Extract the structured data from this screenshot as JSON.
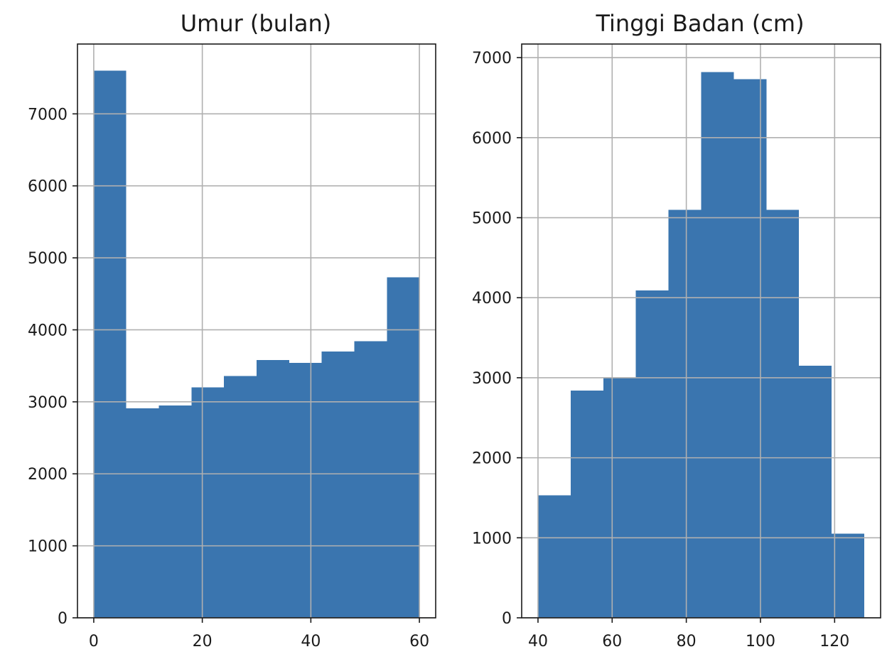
{
  "chart_data": [
    {
      "type": "bar",
      "title": "Umur (bulan)",
      "xlabel": "",
      "ylabel": "",
      "bin_edges": [
        0,
        6,
        12,
        18,
        24,
        30,
        36,
        42,
        48,
        54,
        60
      ],
      "values": [
        7600,
        2910,
        2950,
        3200,
        3360,
        3580,
        3540,
        3700,
        3840,
        4730
      ],
      "xlim": [
        -3,
        63
      ],
      "ylim": [
        0,
        7970
      ],
      "xticks": [
        0,
        20,
        40,
        60
      ],
      "yticks": [
        0,
        1000,
        2000,
        3000,
        4000,
        5000,
        6000,
        7000
      ],
      "grid": true,
      "color": "#3a75af"
    },
    {
      "type": "bar",
      "title": "Tinggi Badan (cm)",
      "xlabel": "",
      "ylabel": "",
      "bin_edges": [
        40,
        48.8,
        57.6,
        66.4,
        75.2,
        84,
        92.8,
        101.6,
        110.4,
        119.2,
        128
      ],
      "values": [
        1530,
        2840,
        3000,
        4090,
        5100,
        6820,
        6730,
        5100,
        3150,
        1050
      ],
      "xlim": [
        35.6,
        132.4
      ],
      "ylim": [
        0,
        7170
      ],
      "xticks": [
        40,
        60,
        80,
        100,
        120
      ],
      "yticks": [
        0,
        1000,
        2000,
        3000,
        4000,
        5000,
        6000,
        7000
      ],
      "grid": true,
      "color": "#3a75af"
    }
  ]
}
